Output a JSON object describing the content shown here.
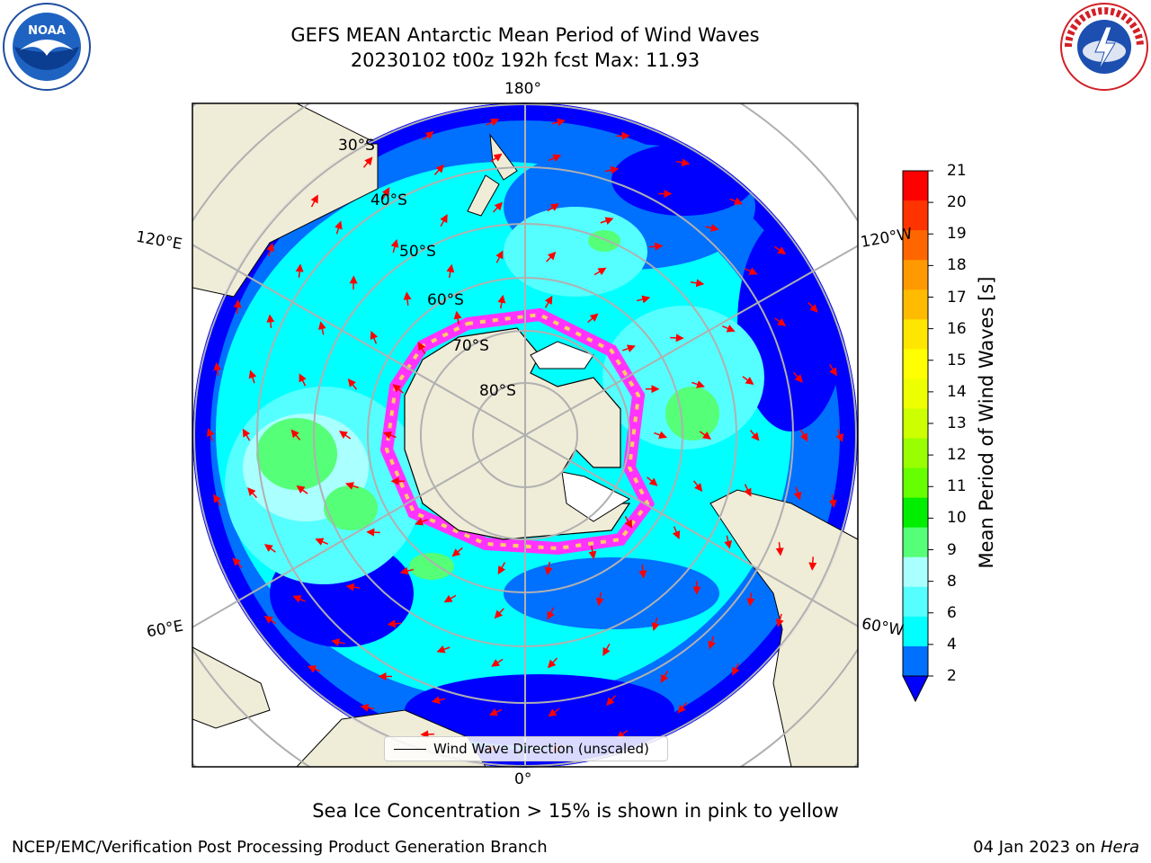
{
  "header": {
    "title_line1": "GEFS MEAN Antarctic Mean Period of Wind Waves",
    "title_line2": "20230102 t00z 192h fcst   Max: 11.93"
  },
  "logos": {
    "left": "noaa-logo",
    "right": "national-weather-service-logo"
  },
  "map": {
    "projection": "south-polar-stereographic",
    "longitude_labels": {
      "top": "180°",
      "bottom": "0°",
      "upper_left": "120°E",
      "upper_right": "120°W",
      "lower_left": "60°E",
      "lower_right": "60°W"
    },
    "latitude_labels": [
      "30°S",
      "40°S",
      "50°S",
      "60°S",
      "70°S",
      "80°S"
    ],
    "legend_label": "Wind Wave Direction (unscaled)",
    "arrow_color": "#ff0000",
    "land_color": "#efecd8",
    "ocean_colors": [
      "#0000ff",
      "#0070ff",
      "#00ffff",
      "#55ffff",
      "#aaffff",
      "#55ff77"
    ]
  },
  "colorbar": {
    "label": "Mean Period of Wind Waves [s]",
    "ticks": [
      "21",
      "20",
      "19",
      "18",
      "17",
      "16",
      "15",
      "14",
      "13",
      "12",
      "11",
      "10",
      "9",
      "8",
      "6",
      "4",
      "2"
    ],
    "colors": [
      "#ff0000",
      "#ff3300",
      "#ff6600",
      "#ff9900",
      "#ffbb00",
      "#ffe600",
      "#ffff00",
      "#eeff00",
      "#ccff00",
      "#99ff00",
      "#66ff00",
      "#00ee00",
      "#55ff77",
      "#aaffff",
      "#55ffff",
      "#00ffff",
      "#0070ff"
    ],
    "extend_color": "#0000ff"
  },
  "footer": {
    "note": "Sea Ice Concentration > 15% is shown in pink to yellow",
    "credit": "NCEP/EMC/Verification Post Processing Product Generation Branch",
    "date": "04 Jan 2023 on ",
    "machine": "Hera"
  }
}
